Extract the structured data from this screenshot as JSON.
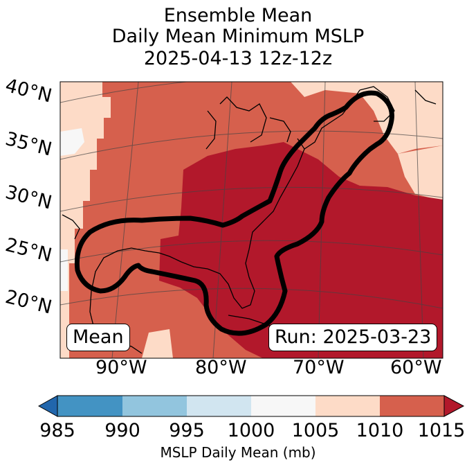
{
  "title": {
    "line1": "Ensemble Mean",
    "line2": "Daily Mean Minimum MSLP",
    "line3": "2025-04-13 12z-12z"
  },
  "map": {
    "lat_labels": [
      "40°N",
      "35°N",
      "30°N",
      "25°N",
      "20°N"
    ],
    "lon_labels": [
      "90°W",
      "80°W",
      "70°W",
      "60°W"
    ],
    "mean_label": "Mean",
    "run_label": "Run: 2025-03-23",
    "colors": {
      "c995_1000": "#d1e5f0",
      "c1000_1005": "#f7f7f7",
      "c1005_1010": "#fddbc7",
      "c1010_1015": "#d6604d",
      "c1015_plus": "#b2182b"
    }
  },
  "colorbar": {
    "ticks": [
      "985",
      "990",
      "995",
      "1000",
      "1005",
      "1010",
      "1015"
    ],
    "label": "MSLP Daily Mean (mb)",
    "colors": [
      "#2166ac",
      "#4393c3",
      "#92c5de",
      "#d1e5f0",
      "#f7f7f7",
      "#fddbc7",
      "#d6604d",
      "#b2182b"
    ]
  }
}
